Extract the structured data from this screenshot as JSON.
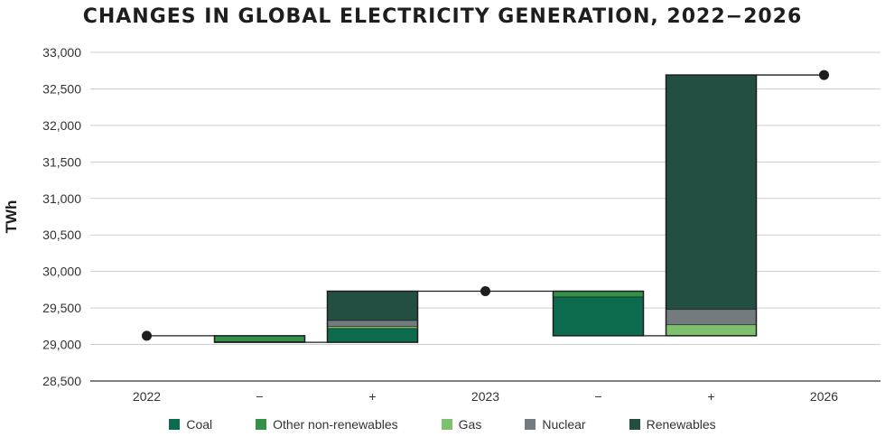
{
  "chart_data": {
    "type": "waterfall",
    "title": "CHANGES IN GLOBAL ELECTRICITY GENERATION, 2022−2026",
    "ylabel": "TWh",
    "xlabel": "",
    "ylim": [
      28500,
      33000
    ],
    "yticks": [
      28500,
      29000,
      29500,
      30000,
      30500,
      31000,
      31500,
      32000,
      32500,
      33000
    ],
    "ytick_labels": [
      "28,500",
      "29,000",
      "29,500",
      "30,000",
      "30,500",
      "31,000",
      "31,500",
      "32,000",
      "32,500",
      "33,000"
    ],
    "categories": [
      "2022",
      "−",
      "+",
      "2023",
      "−",
      "+",
      "2026"
    ],
    "totals": [
      {
        "category_index": 0,
        "value": 29120
      },
      {
        "category_index": 3,
        "value": 29730
      },
      {
        "category_index": 6,
        "value": 32690
      }
    ],
    "series": [
      {
        "name": "Coal",
        "color": "#0c6b4e"
      },
      {
        "name": "Other non-renewables",
        "color": "#339149"
      },
      {
        "name": "Gas",
        "color": "#7dc16d"
      },
      {
        "name": "Nuclear",
        "color": "#747b7f"
      },
      {
        "name": "Renewables",
        "color": "#234f42"
      }
    ],
    "changes": [
      {
        "category_index": 1,
        "direction": "decrease",
        "start": 29120,
        "segments": [
          {
            "series": "Other non-renewables",
            "value": -80
          },
          {
            "series": "Coal",
            "value": -10
          }
        ]
      },
      {
        "category_index": 2,
        "direction": "increase",
        "start": 29030,
        "segments": [
          {
            "series": "Coal",
            "value": 190
          },
          {
            "series": "Gas",
            "value": 30
          },
          {
            "series": "Nuclear",
            "value": 80
          },
          {
            "series": "Renewables",
            "value": 400
          }
        ]
      },
      {
        "category_index": 4,
        "direction": "decrease",
        "start": 29730,
        "segments": [
          {
            "series": "Other non-renewables",
            "value": -80
          },
          {
            "series": "Coal",
            "value": -530
          }
        ]
      },
      {
        "category_index": 5,
        "direction": "increase",
        "start": 29120,
        "segments": [
          {
            "series": "Gas",
            "value": 150
          },
          {
            "series": "Nuclear",
            "value": 210
          },
          {
            "series": "Renewables",
            "value": 3210
          }
        ]
      }
    ],
    "legend_position": "bottom"
  }
}
